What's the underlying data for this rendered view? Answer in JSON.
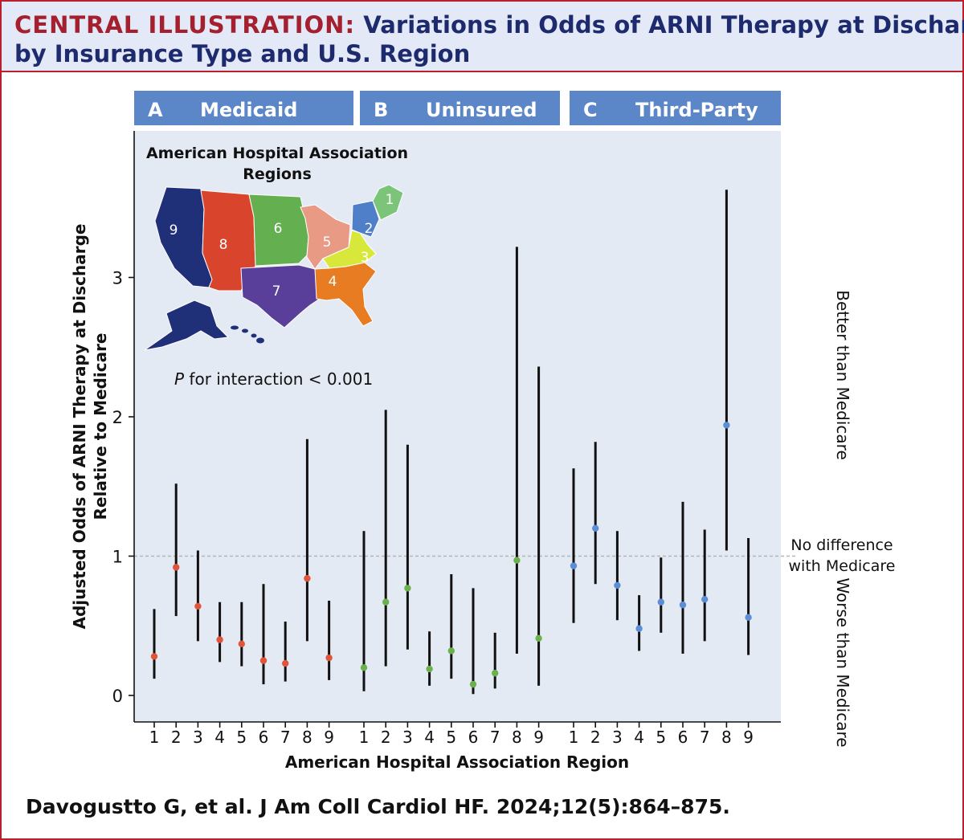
{
  "header": {
    "label": "CENTRAL ILLUSTRATION:",
    "title_part1": "Variations in Odds of ARNI Therapy at Discharge",
    "title_part2": "by Insurance Type and U.S. Region"
  },
  "citation": "Davogustto G, et al. J Am Coll Cardiol HF. 2024;12(5):864–875.",
  "colors": {
    "title_label": "#a4202f",
    "title": "#1e2a6e",
    "panel_header": "#5b86c8",
    "plot_bg": "#e4eaf4",
    "medicaid": "#e0543a",
    "uninsured": "#6ab04c",
    "third_party": "#5b8ed6"
  },
  "map": {
    "title_line1": "American Hospital Association",
    "title_line2": "Regions",
    "regions": [
      {
        "id": "1",
        "color": "#7cc47a"
      },
      {
        "id": "2",
        "color": "#4f7fc9"
      },
      {
        "id": "3",
        "color": "#d8e83a"
      },
      {
        "id": "4",
        "color": "#e87c22"
      },
      {
        "id": "5",
        "color": "#e89a84"
      },
      {
        "id": "6",
        "color": "#64b050"
      },
      {
        "id": "7",
        "color": "#5a3f9a"
      },
      {
        "id": "8",
        "color": "#d8442c"
      },
      {
        "id": "9",
        "color": "#1f2f78"
      }
    ]
  },
  "interaction_text": {
    "p": "P",
    "rest": " for interaction < 0.001"
  },
  "chart_data": {
    "type": "forest",
    "ylabel_line1": "Adjusted Odds of ARNI Therapy at Discharge",
    "ylabel_line2": "Relative to Medicare",
    "xlabel": "American Hospital Association Region",
    "yticks": [
      0,
      1,
      2,
      3
    ],
    "ylim": [
      -0.05,
      3.95
    ],
    "reference_line": 1,
    "right_labels": {
      "better": "Better than Medicare",
      "no_diff_line1": "No difference",
      "no_diff_line2": "with Medicare",
      "worse": "Worse than Medicare"
    },
    "panels": [
      {
        "letter": "A",
        "name": "Medicaid",
        "color": "#e0543a",
        "regions": [
          "1",
          "2",
          "3",
          "4",
          "5",
          "6",
          "7",
          "8",
          "9"
        ],
        "estimates": [
          0.28,
          0.92,
          0.64,
          0.4,
          0.37,
          0.25,
          0.23,
          0.84,
          0.27
        ],
        "lower": [
          0.12,
          0.57,
          0.39,
          0.24,
          0.21,
          0.08,
          0.1,
          0.39,
          0.11
        ],
        "upper": [
          0.62,
          1.52,
          1.04,
          0.67,
          0.67,
          0.8,
          0.53,
          1.84,
          0.68
        ]
      },
      {
        "letter": "B",
        "name": "Uninsured",
        "color": "#6ab04c",
        "regions": [
          "1",
          "2",
          "3",
          "4",
          "5",
          "6",
          "7",
          "8",
          "9"
        ],
        "estimates": [
          0.2,
          0.67,
          0.77,
          0.19,
          0.32,
          0.08,
          0.16,
          0.97,
          0.41
        ],
        "lower": [
          0.03,
          0.21,
          0.33,
          0.07,
          0.12,
          0.01,
          0.05,
          0.3,
          0.07
        ],
        "upper": [
          1.18,
          2.05,
          1.8,
          0.46,
          0.87,
          0.77,
          0.45,
          3.22,
          2.36
        ]
      },
      {
        "letter": "C",
        "name": "Third-Party",
        "color": "#5b8ed6",
        "regions": [
          "1",
          "2",
          "3",
          "4",
          "5",
          "6",
          "7",
          "8",
          "9"
        ],
        "estimates": [
          0.93,
          1.2,
          0.79,
          0.48,
          0.67,
          0.65,
          0.69,
          1.94,
          0.56
        ],
        "lower": [
          0.52,
          0.8,
          0.54,
          0.32,
          0.45,
          0.3,
          0.39,
          1.04,
          0.29
        ],
        "upper": [
          1.63,
          1.82,
          1.18,
          0.72,
          0.99,
          1.39,
          1.19,
          3.63,
          1.13
        ]
      }
    ]
  }
}
